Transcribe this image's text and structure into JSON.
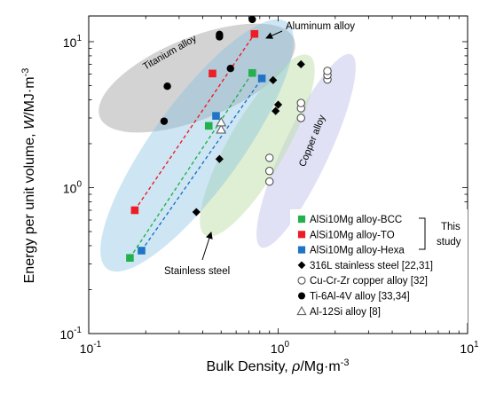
{
  "chart_data": {
    "type": "scatter",
    "xlabel_parts": [
      "Bulk Density, ",
      "ρ",
      "/Mg·m",
      "-3"
    ],
    "ylabel_parts": [
      "Energy per unit volume, ",
      "W",
      "/MJ·m",
      "-3"
    ],
    "xscale": "log",
    "yscale": "log",
    "xlim": [
      0.1,
      10
    ],
    "ylim": [
      0.1,
      15
    ],
    "x_ticks": [
      {
        "value": 0.1,
        "label": "10",
        "exp": "-1"
      },
      {
        "value": 1,
        "label": "10",
        "exp": "0"
      },
      {
        "value": 10,
        "label": "10",
        "exp": "1"
      }
    ],
    "y_ticks": [
      {
        "value": 0.1,
        "label": "10",
        "exp": "-1"
      },
      {
        "value": 1,
        "label": "10",
        "exp": "0"
      },
      {
        "value": 10,
        "label": "10",
        "exp": "1"
      }
    ],
    "grid": false,
    "legend_position": "bottom-right",
    "legend_bracket_label": [
      "This",
      "study"
    ],
    "series": [
      {
        "name": "AlSi10Mg alloy-BCC",
        "marker": "square",
        "color": "#22b14c",
        "fill": true,
        "points": [
          [
            0.165,
            0.33
          ],
          [
            0.43,
            2.65
          ],
          [
            0.73,
            6.1
          ]
        ],
        "trend": true
      },
      {
        "name": "AlSi10Mg alloy-TO",
        "marker": "square",
        "color": "#ee1c24",
        "fill": true,
        "points": [
          [
            0.175,
            0.7
          ],
          [
            0.45,
            6.05
          ],
          [
            0.75,
            11.3
          ]
        ],
        "trend": true
      },
      {
        "name": "AlSi10Mg alloy-Hexa",
        "marker": "square",
        "color": "#1f74c5",
        "fill": true,
        "points": [
          [
            0.19,
            0.37
          ],
          [
            0.47,
            3.1
          ],
          [
            0.82,
            5.6
          ]
        ],
        "trend": true
      },
      {
        "name": "316L stainless steel",
        "ref": "[22,31]",
        "marker": "diamond",
        "color": "#000000",
        "fill": true,
        "points": [
          [
            0.37,
            0.68
          ],
          [
            0.49,
            1.57
          ],
          [
            0.94,
            5.45
          ],
          [
            0.97,
            3.35
          ],
          [
            1.0,
            3.7
          ],
          [
            1.32,
            7.0
          ]
        ],
        "trend": false
      },
      {
        "name": "Cu-Cr-Zr copper alloy",
        "ref": "[32]",
        "marker": "circle",
        "color": "#444444",
        "fill": false,
        "points": [
          [
            0.9,
            1.1
          ],
          [
            0.9,
            1.3
          ],
          [
            0.9,
            1.6
          ],
          [
            1.32,
            3.0
          ],
          [
            1.32,
            3.5
          ],
          [
            1.32,
            3.8
          ],
          [
            1.82,
            5.5
          ],
          [
            1.82,
            5.9
          ],
          [
            1.82,
            6.3
          ]
        ],
        "trend": false
      },
      {
        "name": "Ti-6Al-4V alloy",
        "ref": "[33,34]",
        "marker": "circle",
        "color": "#000000",
        "fill": true,
        "points": [
          [
            0.25,
            2.85
          ],
          [
            0.26,
            4.95
          ],
          [
            0.49,
            10.8
          ],
          [
            0.49,
            11.2
          ],
          [
            0.56,
            6.55
          ],
          [
            0.73,
            14.2
          ]
        ],
        "trend": false
      },
      {
        "name": "Al-12Si alloy",
        "ref": "[8]",
        "marker": "triangle",
        "color": "#555555",
        "fill": false,
        "points": [
          [
            0.5,
            2.5
          ],
          [
            0.5,
            2.8
          ]
        ],
        "trend": false
      }
    ],
    "annotations": [
      {
        "text": "Titanium alloy"
      },
      {
        "text": "Aluminum alloy"
      },
      {
        "text": "Stainless steel"
      },
      {
        "text": "Copper alloy"
      }
    ]
  }
}
